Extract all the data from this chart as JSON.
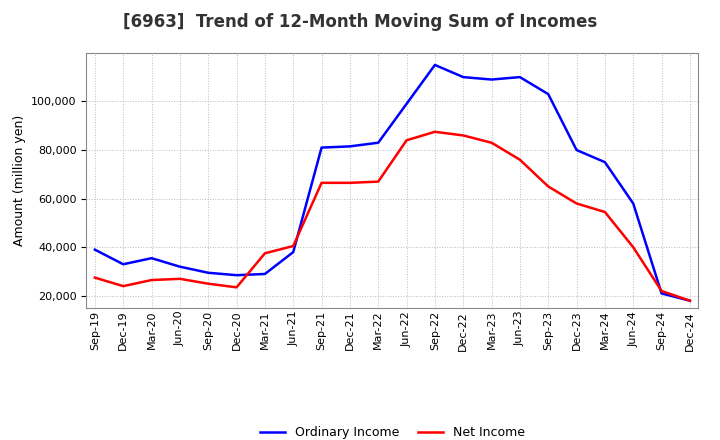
{
  "title": "[6963]  Trend of 12-Month Moving Sum of Incomes",
  "ylabel": "Amount (million yen)",
  "x_labels": [
    "Sep-19",
    "Dec-19",
    "Mar-20",
    "Jun-20",
    "Sep-20",
    "Dec-20",
    "Mar-21",
    "Jun-21",
    "Sep-21",
    "Dec-21",
    "Mar-22",
    "Jun-22",
    "Sep-22",
    "Dec-22",
    "Mar-23",
    "Jun-23",
    "Sep-23",
    "Dec-23",
    "Mar-24",
    "Jun-24",
    "Sep-24",
    "Dec-24"
  ],
  "ordinary_income": [
    39000,
    33000,
    35500,
    32000,
    29500,
    28500,
    29000,
    38000,
    81000,
    81500,
    83000,
    99000,
    115000,
    110000,
    109000,
    110000,
    103000,
    80000,
    75000,
    58000,
    21000,
    18000
  ],
  "net_income": [
    27500,
    24000,
    26500,
    27000,
    25000,
    23500,
    37500,
    40500,
    66500,
    66500,
    67000,
    84000,
    87500,
    86000,
    83000,
    76000,
    65000,
    58000,
    54500,
    40000,
    22000,
    18000
  ],
  "ordinary_color": "#0000ff",
  "net_color": "#ff0000",
  "background_color": "#ffffff",
  "grid_color": "#bbbbbb",
  "ylim": [
    15000,
    120000
  ],
  "yticks": [
    20000,
    40000,
    60000,
    80000,
    100000
  ],
  "legend_labels": [
    "Ordinary Income",
    "Net Income"
  ],
  "title_fontsize": 12,
  "axis_fontsize": 8,
  "label_fontsize": 9,
  "line_width": 1.8
}
